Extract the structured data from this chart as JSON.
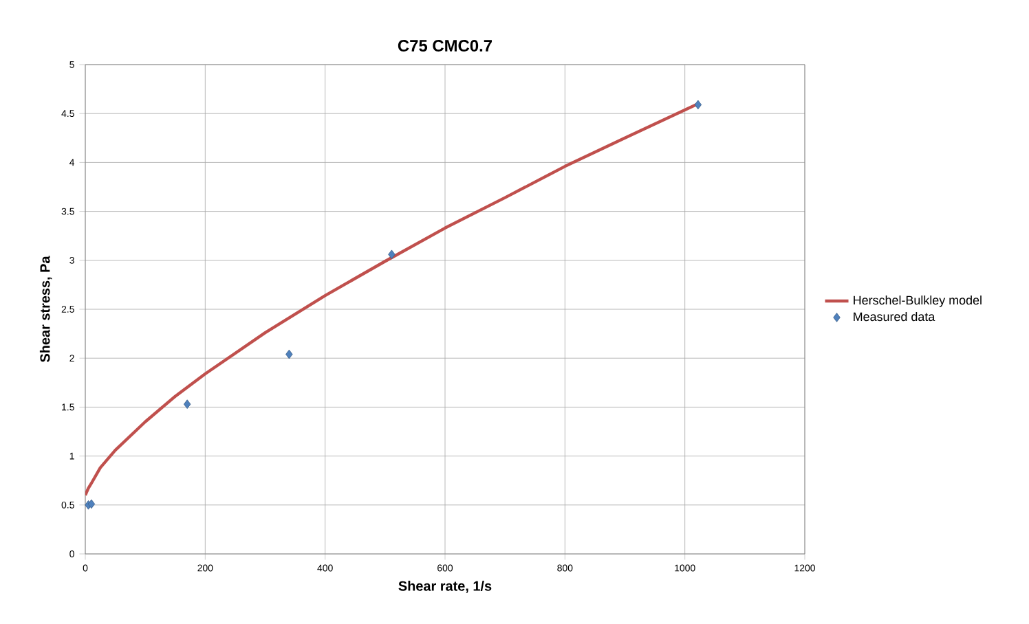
{
  "chart_data": {
    "type": "scatter",
    "title": "C75 CMC0.7",
    "xlabel": "Shear rate, 1/s",
    "ylabel": "Shear stress, Pa",
    "xlim": [
      0,
      1200
    ],
    "xticks": [
      0,
      200,
      400,
      600,
      800,
      1000,
      1200
    ],
    "ylim": [
      0,
      5
    ],
    "yticks": [
      0,
      0.5,
      1,
      1.5,
      2,
      2.5,
      3,
      3.5,
      4,
      4.5,
      5
    ],
    "grid": true,
    "legend": "right",
    "series": [
      {
        "name": "Herschel-Bulkley model",
        "type": "line",
        "color": "#c0504d",
        "marker": "none",
        "line_style": "solid",
        "x": [
          0,
          5,
          10,
          25,
          50,
          100,
          150,
          200,
          300,
          400,
          500,
          600,
          700,
          800,
          900,
          1022
        ],
        "values": [
          0.6,
          0.67,
          0.72,
          0.88,
          1.06,
          1.35,
          1.61,
          1.84,
          2.26,
          2.64,
          2.99,
          3.33,
          3.64,
          3.96,
          4.25,
          4.6
        ]
      },
      {
        "name": "Measured data",
        "color": "#4f81bd",
        "marker": "diamond",
        "x": [
          5.11,
          10.22,
          170,
          340,
          511,
          1022
        ],
        "values": [
          0.5,
          0.51,
          1.53,
          2.04,
          3.06,
          4.59
        ]
      }
    ]
  }
}
